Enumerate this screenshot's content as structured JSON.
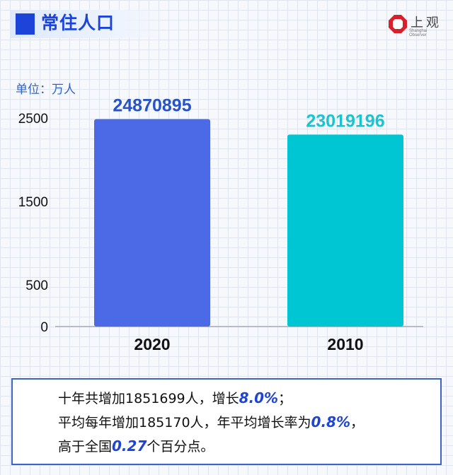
{
  "header": {
    "title": "常住人口"
  },
  "logo": {
    "text": "上观",
    "subtext": "Shanghai Observer"
  },
  "unit_label": "单位：万人",
  "colors": {
    "bar_2020": "#4d6ae6",
    "bar_2010": "#00c6d3",
    "label_2020": "#2853c4",
    "label_2010": "#19c3cf"
  },
  "chart_data": {
    "type": "bar",
    "categories": [
      "2020",
      "2010"
    ],
    "values": [
      2487.0895,
      2301.9196
    ],
    "data_labels": [
      "24870895",
      "23019196"
    ],
    "ylim": [
      0,
      2500
    ],
    "yticks": [
      "0",
      "500",
      "1500",
      "2500"
    ],
    "ylabel": "单位：万人",
    "grid": false
  },
  "summary": {
    "line1_pre": "十年共增加1851699人，增长",
    "line1_hl": "8.0%",
    "line1_post": "；",
    "line2_pre": "平均每年增加185170人，年平均增长率为",
    "line2_hl": "0.8%",
    "line2_post": "，",
    "line3_pre": "高于全国",
    "line3_hl": "0.27",
    "line3_post": "个百分点。"
  }
}
